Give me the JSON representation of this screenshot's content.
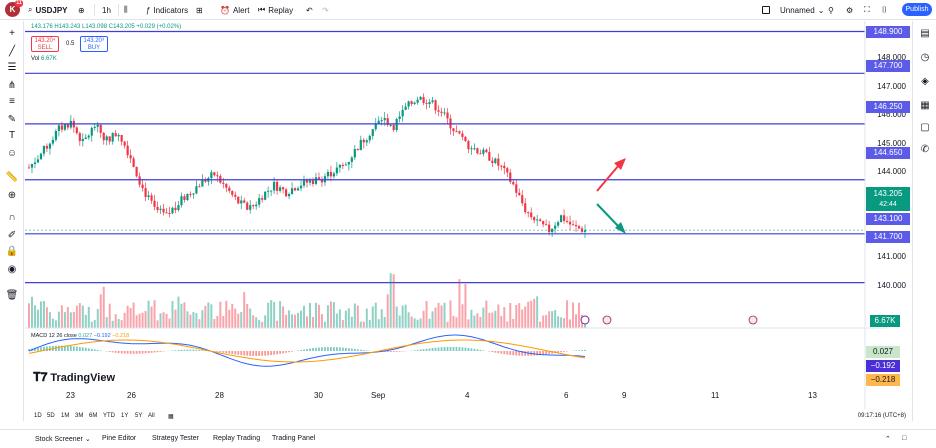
{
  "toolbar": {
    "avatar_letter": "K",
    "avatar_badge": "11",
    "symbol": "USDJPY",
    "interval": "1h",
    "indicators_label": "Indicators",
    "alert_label": "Alert",
    "replay_label": "Replay",
    "layout_name": "Unnamed",
    "publish_label": "Publish"
  },
  "legend": {
    "ohlc": "143.176 H143.243 L143.098 C143.205 +0.029 (+0.02%)",
    "sell_price": "143.20⁴",
    "sell_label": "SELL",
    "spread": "0.5",
    "buy_price": "143.20⁹",
    "buy_label": "BUY",
    "vol_label": "Vol",
    "vol_value": "6.67K",
    "macd_title": "MACD 12 26 close",
    "macd_hist": "0.027",
    "macd_line": "−0.192",
    "macd_signal": "−0.218"
  },
  "price_axis": {
    "levels": [
      {
        "value": "148.900",
        "style": "blue"
      },
      {
        "value": "147.700",
        "style": "blue"
      },
      {
        "value": "146.250",
        "style": "blue"
      },
      {
        "value": "144.650",
        "style": "blue"
      },
      {
        "value": "143.100",
        "style": "blue"
      },
      {
        "value": "141.700",
        "style": "blue"
      }
    ],
    "labels": [
      "148.000",
      "147.000",
      "146.000",
      "145.000",
      "144.000",
      "141.000",
      "140.000"
    ],
    "current_price": "143.205",
    "countdown": "42:44",
    "volume_tag": "6.67K",
    "macd_tags": [
      "0.027",
      "−0.192",
      "−0.218"
    ]
  },
  "time_axis": [
    "23",
    "26",
    "28",
    "30",
    "Sep",
    "4",
    "6",
    "9",
    "11",
    "13"
  ],
  "ranges": [
    "1D",
    "5D",
    "1M",
    "3M",
    "6M",
    "YTD",
    "1Y",
    "5Y",
    "All"
  ],
  "clock": "09:17:16 (UTC+8)",
  "bottom_panels": [
    "Stock Screener",
    "Pine Editor",
    "Strategy Tester",
    "Replay Trading",
    "Trading Panel"
  ],
  "logo_text": "TradingView",
  "colors": {
    "up": "#089981",
    "down": "#f23645",
    "level_line": "#3f3fd8",
    "accent": "#2962ff",
    "macd_line": "#2962ff",
    "signal_line": "#ff9800"
  },
  "chart_data": {
    "type": "candlestick",
    "symbol": "USDJPY",
    "interval": "1h",
    "ylim": [
      140.6,
      149.2
    ],
    "horizontal_levels": [
      148.9,
      147.7,
      146.25,
      144.65,
      143.1,
      141.7
    ],
    "close_path": [
      [
        0,
        145.0
      ],
      [
        5,
        145.5
      ],
      [
        10,
        146.1
      ],
      [
        14,
        146.3
      ],
      [
        18,
        145.7
      ],
      [
        22,
        146.2
      ],
      [
        26,
        145.8
      ],
      [
        30,
        146.0
      ],
      [
        34,
        145.3
      ],
      [
        38,
        144.4
      ],
      [
        42,
        143.8
      ],
      [
        46,
        143.6
      ],
      [
        50,
        144.0
      ],
      [
        54,
        144.3
      ],
      [
        58,
        144.6
      ],
      [
        62,
        144.8
      ],
      [
        66,
        144.4
      ],
      [
        70,
        144.0
      ],
      [
        74,
        143.8
      ],
      [
        78,
        144.2
      ],
      [
        82,
        144.5
      ],
      [
        86,
        144.3
      ],
      [
        90,
        144.5
      ],
      [
        94,
        144.6
      ],
      [
        98,
        144.7
      ],
      [
        102,
        144.9
      ],
      [
        106,
        145.1
      ],
      [
        110,
        145.6
      ],
      [
        114,
        146.0
      ],
      [
        118,
        146.4
      ],
      [
        122,
        146.2
      ],
      [
        126,
        146.7
      ],
      [
        130,
        147.0
      ],
      [
        134,
        146.9
      ],
      [
        138,
        146.6
      ],
      [
        142,
        146.1
      ],
      [
        146,
        145.7
      ],
      [
        150,
        145.5
      ],
      [
        154,
        145.3
      ],
      [
        158,
        145.0
      ],
      [
        162,
        144.5
      ],
      [
        166,
        143.8
      ],
      [
        170,
        143.4
      ],
      [
        174,
        143.2
      ],
      [
        178,
        143.6
      ],
      [
        182,
        143.3
      ],
      [
        186,
        143.2
      ]
    ],
    "volume_last": "6.67K",
    "macd": {
      "histogram": 0.027,
      "macd": -0.192,
      "signal": -0.218
    },
    "arrows": [
      {
        "direction": "up",
        "color": "#f23645"
      },
      {
        "direction": "down",
        "color": "#089981"
      }
    ]
  }
}
